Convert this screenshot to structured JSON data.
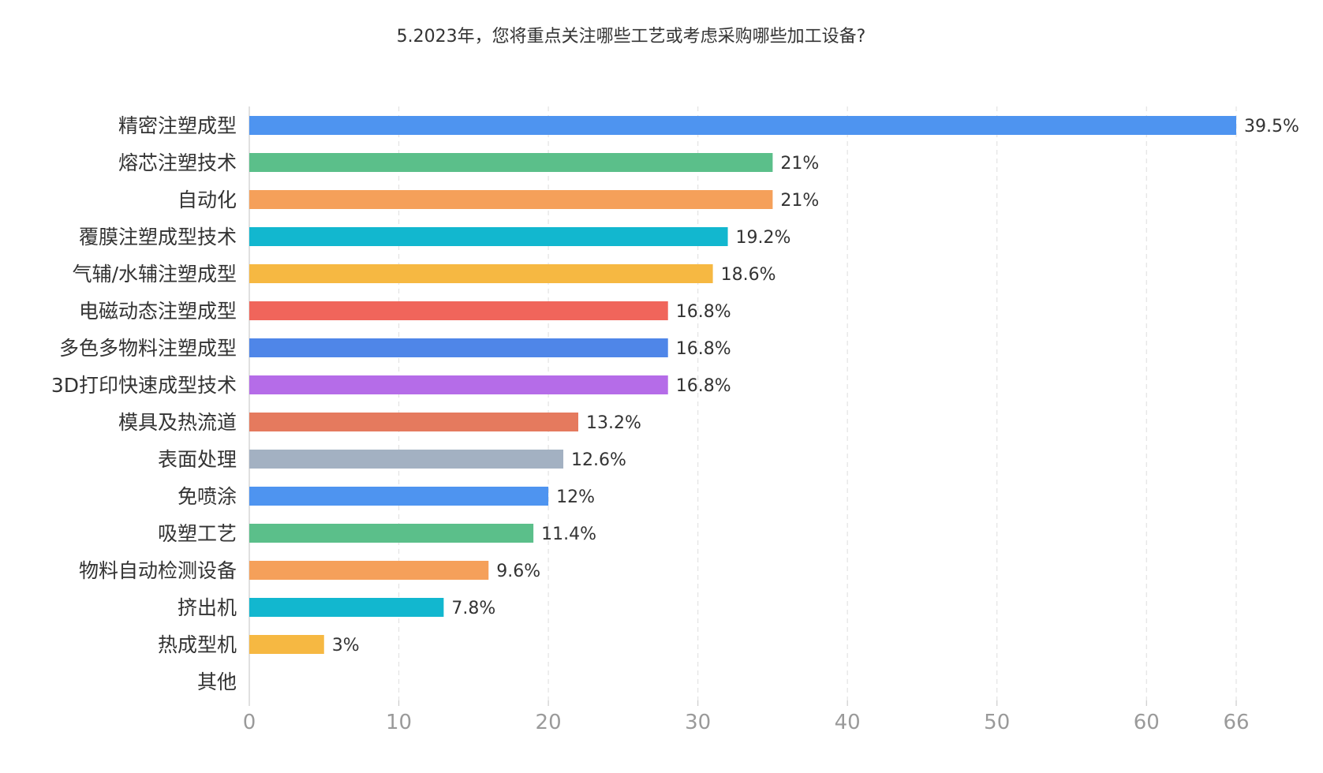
{
  "chart_data": {
    "type": "bar",
    "orientation": "horizontal",
    "title": "5.2023年，您将重点关注哪些工艺或考虑采购哪些加工设备?",
    "categories": [
      "精密注塑成型",
      "熔芯注塑技术",
      "自动化",
      "覆膜注塑成型技术",
      "气辅/水辅注塑成型",
      "电磁动态注塑成型",
      "多色多物料注塑成型",
      "3D打印快速成型技术",
      "模具及热流道",
      "表面处理",
      "免喷涂",
      "吸塑工艺",
      "物料自动检测设备",
      "挤出机",
      "热成型机",
      "其他"
    ],
    "values": [
      66,
      35,
      35,
      32,
      31,
      28,
      28,
      28,
      22,
      21,
      20,
      19,
      16,
      13,
      5,
      0
    ],
    "data_labels": [
      "39.5%",
      "21%",
      "21%",
      "19.2%",
      "18.6%",
      "16.8%",
      "16.8%",
      "16.8%",
      "13.2%",
      "12.6%",
      "12%",
      "11.4%",
      "9.6%",
      "7.8%",
      "3%",
      ""
    ],
    "colors": [
      "#4e94f0",
      "#5bbf8a",
      "#f5a05a",
      "#12b7cf",
      "#f6b842",
      "#f0655b",
      "#4f86e8",
      "#b56ce8",
      "#e57a5e",
      "#a3b1c2",
      "#4e94f0",
      "#5bbf8a",
      "#f5a05a",
      "#12b7cf",
      "#f6b842",
      "#f0655b"
    ],
    "x_ticks": [
      0,
      10,
      20,
      30,
      40,
      50,
      60,
      66
    ],
    "xlim": [
      0,
      66
    ],
    "grid": "vertical dashed",
    "legend": "none"
  }
}
